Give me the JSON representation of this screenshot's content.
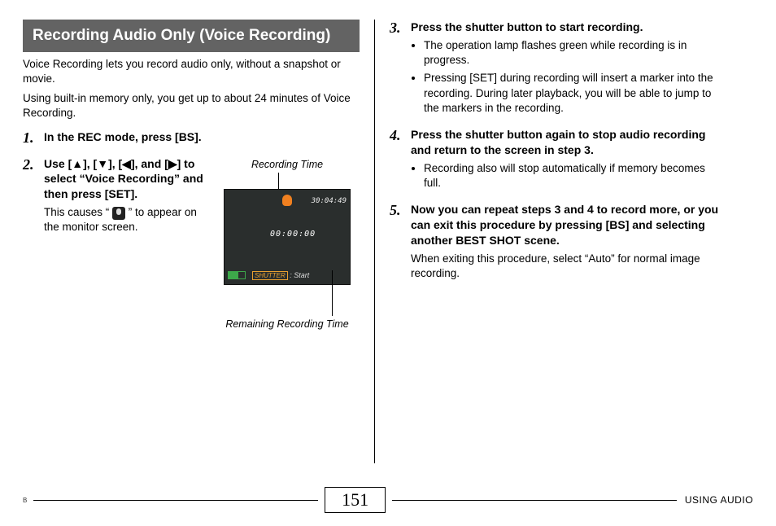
{
  "header": "Recording Audio Only (Voice Recording)",
  "intro1": "Voice Recording lets you record audio only, without a snapshot or movie.",
  "intro2": "Using built-in memory only, you get up to about 24 minutes of Voice Recording.",
  "steps": {
    "s1": {
      "num": "1.",
      "heading": "In the REC mode, press [BS]."
    },
    "s2": {
      "num": "2.",
      "heading_prefix": "Use [",
      "heading_mid1": "], [",
      "heading_mid2": "], [",
      "heading_mid3": "], and [",
      "heading_suffix": "] to select “Voice Recording” and then press [SET].",
      "note_prefix": "This causes “ ",
      "note_suffix": " ” to appear on the monitor screen.",
      "fig_top": "Recording Time",
      "fig_bottom": "Remaining Recording Time",
      "shot": {
        "elapsed": "00:00:00",
        "remaining": "30:04:49",
        "shutter": "SHUTTER",
        "start": ": Start"
      }
    },
    "s3": {
      "num": "3.",
      "heading": "Press the shutter button to start recording.",
      "b1": "The operation lamp flashes green while recording is in progress.",
      "b2": "Pressing [SET] during recording will insert a marker into the recording. During later playback, you will be able to jump to the markers in the recording."
    },
    "s4": {
      "num": "4.",
      "heading": "Press the shutter button again to stop audio recording and return to the screen in step 3.",
      "b1": "Recording also will stop automatically if memory becomes full."
    },
    "s5": {
      "num": "5.",
      "heading": "Now you can repeat steps 3 and 4 to record more, or you can exit this procedure by pressing [BS] and selecting another BEST SHOT scene.",
      "note": "When exiting this procedure, select “Auto” for normal image recording."
    }
  },
  "footer": {
    "b": "B",
    "page": "151",
    "label": "USING AUDIO"
  },
  "glyphs": {
    "up": "▲",
    "down": "▼",
    "left": "◀",
    "right": "▶"
  },
  "colors": {
    "header_bg": "#636363",
    "shot_bg": "#2a2e2d",
    "mic_orange": "#f08020",
    "battery_green": "#3da84a"
  }
}
